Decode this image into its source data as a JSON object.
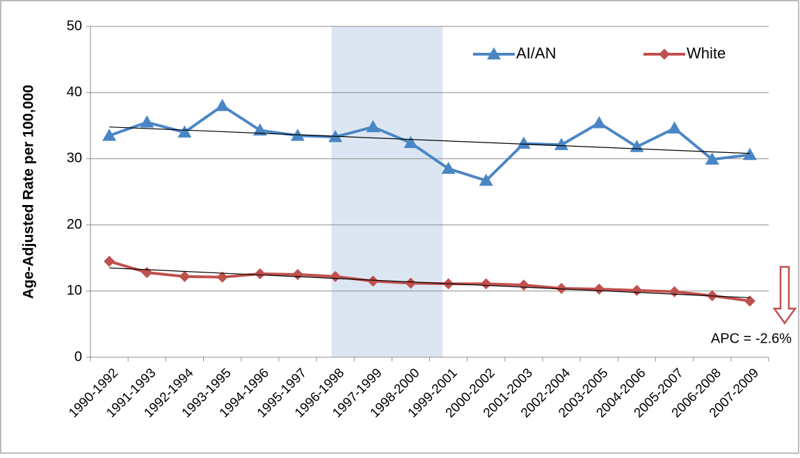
{
  "chart_data": {
    "type": "line",
    "y_label": "Age-Adjusted Rate per 100,000",
    "categories": [
      "1990-1992",
      "1991-1993",
      "1992-1994",
      "1993-1995",
      "1994-1996",
      "1995-1997",
      "1996-1998",
      "1997-1999",
      "1998-2000",
      "1999-2001",
      "2000-2002",
      "2001-2003",
      "2002-2004",
      "2003-2005",
      "2004-2006",
      "2005-2007",
      "2006-2008",
      "2007-2009"
    ],
    "series": [
      {
        "name": "AI/AN",
        "color": "#4a86c5",
        "marker": "triangle",
        "values": [
          33.5,
          35.5,
          34,
          38,
          34.3,
          33.5,
          33.3,
          34.8,
          32.4,
          28.5,
          26.7,
          32.3,
          32.1,
          35.4,
          31.8,
          34.6,
          29.9,
          30.6
        ],
        "trend": {
          "start": 34.8,
          "end": 30.8
        }
      },
      {
        "name": "White",
        "color": "#c0504d",
        "marker": "diamond",
        "values": [
          14.5,
          12.8,
          12.2,
          12.1,
          12.6,
          12.5,
          12.2,
          11.5,
          11.2,
          11.1,
          11.1,
          10.9,
          10.4,
          10.3,
          10.1,
          9.9,
          9.3,
          8.5
        ],
        "trend": {
          "start": 13.5,
          "end": 9.0
        }
      }
    ],
    "trend_color": "#000000",
    "highlight": {
      "from": "1996-1998",
      "to": "1999-2001",
      "color": "#dce6f2"
    },
    "annotation": "APC = -2.6%",
    "ylim": [
      0,
      50
    ],
    "yticks": [
      0,
      10,
      20,
      30,
      40,
      50
    ],
    "grid": true,
    "legend": "upper right"
  }
}
